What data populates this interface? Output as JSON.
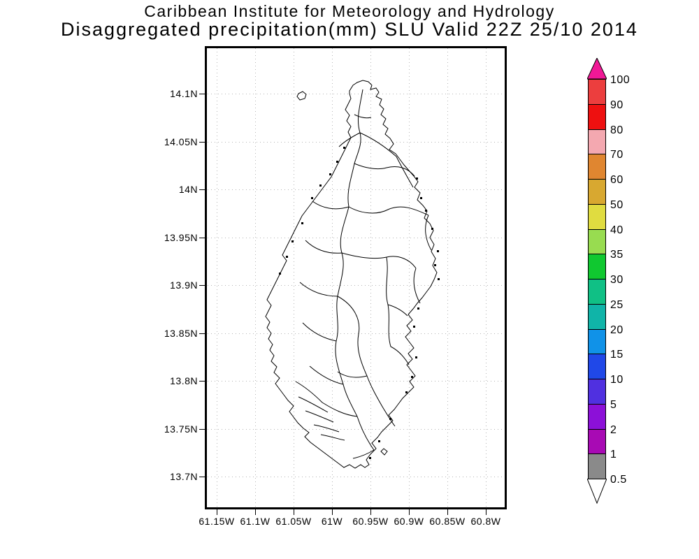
{
  "title": {
    "line1": "Caribbean Institute for Meteorology and Hydrology",
    "line2": "Disaggregated precipitation(mm) SLU Valid 22Z 25/10 2014"
  },
  "map": {
    "lat_labels": [
      "14.1N",
      "14.05N",
      "14N",
      "13.95N",
      "13.9N",
      "13.85N",
      "13.8N",
      "13.75N",
      "13.7N"
    ],
    "lon_labels": [
      "61.15W",
      "61.1W",
      "61.05W",
      "61W",
      "60.95W",
      "60.9W",
      "60.85W",
      "60.8W"
    ]
  },
  "colorbar": {
    "labels": [
      "100",
      "90",
      "80",
      "70",
      "60",
      "50",
      "40",
      "35",
      "30",
      "25",
      "20",
      "15",
      "10",
      "5",
      "2",
      "1",
      "0.5"
    ],
    "segment_colors": [
      "#ec3e3e",
      "#ee1010",
      "#f4a8b0",
      "#e08630",
      "#d8a830",
      "#e0dc40",
      "#98dc50",
      "#10c830",
      "#10c085",
      "#10b4a8",
      "#1092e8",
      "#2048e8",
      "#5030e0",
      "#8c10d8",
      "#a80ab4",
      "#8a8a8a"
    ],
    "top_arrow_color": "#f01896",
    "bottom_arrow_color": "#ffffff"
  }
}
